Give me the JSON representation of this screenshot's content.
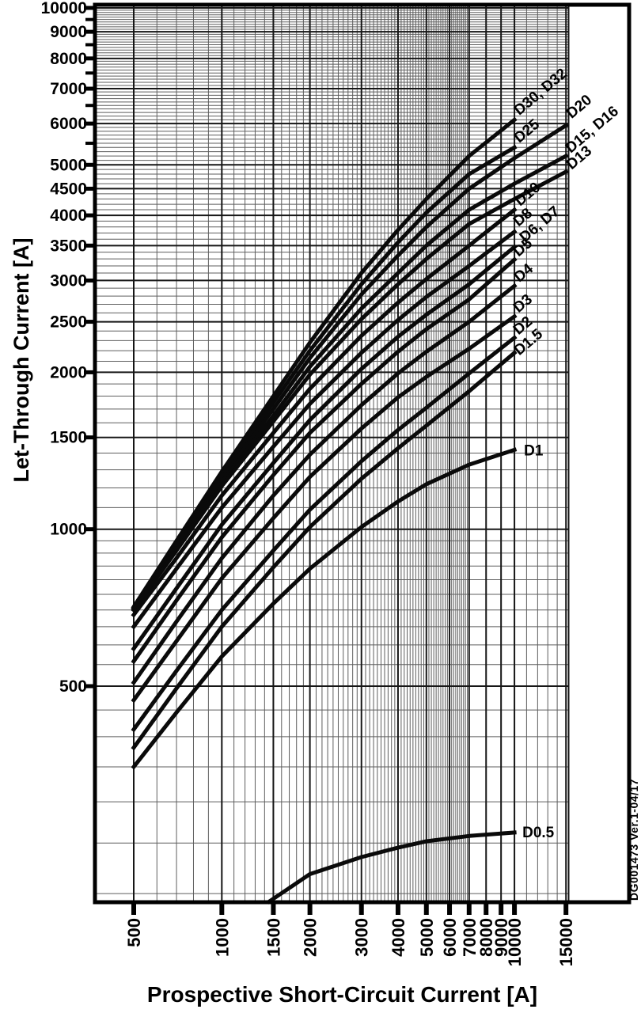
{
  "page": {
    "background": "#ffffff"
  },
  "chart_data": {
    "type": "line",
    "title": "",
    "xlabel": "Prospective Short-Circuit Current [A]",
    "ylabel": "Let-Through Current [A]",
    "side_note": "DG001473  Ver.1-04/17",
    "x_scale": "log",
    "y_scale": "log",
    "x_range": [
      500,
      15000
    ],
    "y_range": [
      200,
      10000
    ],
    "grid": "on",
    "legend_position": "curve-end-labels",
    "x_ticks": [
      {
        "value": 500,
        "label": "500"
      },
      {
        "value": 1000,
        "label": "1000"
      },
      {
        "value": 1500,
        "label": "1500"
      },
      {
        "value": 2000,
        "label": "2000"
      },
      {
        "value": 3000,
        "label": "3000"
      },
      {
        "value": 4000,
        "label": "4000"
      },
      {
        "value": 5000,
        "label": "5000"
      },
      {
        "value": 6000,
        "label": "6000"
      },
      {
        "value": 7000,
        "label": "7000"
      },
      {
        "value": 8000,
        "label": "8000"
      },
      {
        "value": 9000,
        "label": "9000"
      },
      {
        "value": 10000,
        "label": "10000"
      },
      {
        "value": 15000,
        "label": "15000"
      }
    ],
    "y_ticks": [
      {
        "value": 10000,
        "label": "10000"
      },
      {
        "value": 9000,
        "label": "9000"
      },
      {
        "value": 8000,
        "label": "8000"
      },
      {
        "value": 7000,
        "label": "7000"
      },
      {
        "value": 6000,
        "label": "6000"
      },
      {
        "value": 5000,
        "label": "5000"
      },
      {
        "value": 4500,
        "label": "4500"
      },
      {
        "value": 4000,
        "label": "4000"
      },
      {
        "value": 3500,
        "label": "3500"
      },
      {
        "value": 3000,
        "label": "3000"
      },
      {
        "value": 2500,
        "label": "2500"
      },
      {
        "value": 2000,
        "label": "2000"
      },
      {
        "value": 1500,
        "label": "1500"
      },
      {
        "value": 1000,
        "label": "1000"
      },
      {
        "value": 500,
        "label": "500"
      }
    ],
    "y_minor_tick_marks": [
      5500,
      6500,
      7500,
      8500,
      9500
    ],
    "x_minor_grid": [
      {
        "from": 500,
        "to": 6900,
        "step": 100
      },
      {
        "from": 8000,
        "to": 14000,
        "step": 1000
      }
    ],
    "y_minor_grid": [
      {
        "from": 200,
        "to": 950,
        "step": 50
      },
      {
        "from": 1000,
        "to": 9900,
        "step": 100
      }
    ],
    "colors": {
      "curve": "#0a0a0a",
      "grid_minor": "#5e5e5e",
      "grid_major": "#161616",
      "frame": "#000000",
      "background": "#ffffff"
    },
    "series": [
      {
        "name": "D30, D32",
        "points": [
          [
            500,
            710
          ],
          [
            700,
            950
          ],
          [
            1000,
            1290
          ],
          [
            1500,
            1800
          ],
          [
            2000,
            2280
          ],
          [
            3000,
            3100
          ],
          [
            4000,
            3750
          ],
          [
            5000,
            4300
          ],
          [
            7000,
            5200
          ],
          [
            10000,
            6100
          ]
        ],
        "label": {
          "dx": 6,
          "dy": -5,
          "rot": -40
        }
      },
      {
        "name": "D25",
        "points": [
          [
            500,
            708
          ],
          [
            700,
            940
          ],
          [
            1000,
            1270
          ],
          [
            1500,
            1750
          ],
          [
            2000,
            2200
          ],
          [
            3000,
            2950
          ],
          [
            4000,
            3550
          ],
          [
            5000,
            4050
          ],
          [
            7000,
            4800
          ],
          [
            10000,
            5400
          ]
        ],
        "label": {
          "dx": 6,
          "dy": -5,
          "rot": -40
        }
      },
      {
        "name": "D20",
        "points": [
          [
            500,
            706
          ],
          [
            700,
            930
          ],
          [
            1000,
            1250
          ],
          [
            1500,
            1700
          ],
          [
            2000,
            2130
          ],
          [
            3000,
            2820
          ],
          [
            4000,
            3350
          ],
          [
            5000,
            3800
          ],
          [
            7000,
            4500
          ],
          [
            10000,
            5150
          ],
          [
            15000,
            5950
          ]
        ],
        "label": {
          "dx": 7,
          "dy": -8,
          "rot": -40
        }
      },
      {
        "name": "D15, D16",
        "points": [
          [
            500,
            704
          ],
          [
            700,
            920
          ],
          [
            1000,
            1230
          ],
          [
            1500,
            1650
          ],
          [
            2000,
            2050
          ],
          [
            3000,
            2650
          ],
          [
            4000,
            3100
          ],
          [
            5000,
            3500
          ],
          [
            7000,
            4100
          ],
          [
            10000,
            4600
          ],
          [
            15000,
            5200
          ]
        ],
        "label": {
          "dx": 6,
          "dy": -3,
          "rot": -40
        }
      },
      {
        "name": "D13",
        "points": [
          [
            500,
            700
          ],
          [
            700,
            910
          ],
          [
            1000,
            1210
          ],
          [
            1500,
            1610
          ],
          [
            2000,
            1980
          ],
          [
            3000,
            2530
          ],
          [
            4000,
            2950
          ],
          [
            5000,
            3300
          ],
          [
            7000,
            3850
          ],
          [
            10000,
            4300
          ],
          [
            15000,
            4850
          ]
        ],
        "label": {
          "dx": 7,
          "dy": -2,
          "rot": -40
        }
      },
      {
        "name": "D10",
        "points": [
          [
            500,
            685
          ],
          [
            700,
            880
          ],
          [
            1000,
            1160
          ],
          [
            1500,
            1530
          ],
          [
            2000,
            1860
          ],
          [
            3000,
            2350
          ],
          [
            4000,
            2720
          ],
          [
            5000,
            3020
          ],
          [
            7000,
            3500
          ],
          [
            10000,
            4100
          ]
        ],
        "label": {
          "dx": 7,
          "dy": -4,
          "rot": -40
        }
      },
      {
        "name": "D8",
        "points": [
          [
            500,
            650
          ],
          [
            700,
            840
          ],
          [
            1000,
            1100
          ],
          [
            1500,
            1440
          ],
          [
            2000,
            1740
          ],
          [
            3000,
            2180
          ],
          [
            4000,
            2520
          ],
          [
            5000,
            2790
          ],
          [
            7000,
            3200
          ],
          [
            10000,
            3720
          ]
        ],
        "label": {
          "dx": 5,
          "dy": -6,
          "rot": -40
        }
      },
      {
        "name": "D6, D7",
        "points": [
          [
            500,
            590
          ],
          [
            700,
            770
          ],
          [
            1000,
            1020
          ],
          [
            1500,
            1340
          ],
          [
            2000,
            1620
          ],
          [
            3000,
            2030
          ],
          [
            4000,
            2340
          ],
          [
            5000,
            2580
          ],
          [
            7000,
            2950
          ],
          [
            10000,
            3480
          ]
        ],
        "label": {
          "dx": 13,
          "dy": -5,
          "rot": -40
        }
      },
      {
        "name": "D5",
        "points": [
          [
            500,
            558
          ],
          [
            700,
            730
          ],
          [
            1000,
            965
          ],
          [
            1500,
            1270
          ],
          [
            2000,
            1530
          ],
          [
            3000,
            1900
          ],
          [
            4000,
            2190
          ],
          [
            5000,
            2420
          ],
          [
            7000,
            2760
          ],
          [
            10000,
            3290
          ]
        ],
        "label": {
          "dx": 5,
          "dy": -3,
          "rot": -40
        }
      },
      {
        "name": "D4",
        "points": [
          [
            500,
            508
          ],
          [
            700,
            665
          ],
          [
            1000,
            880
          ],
          [
            1500,
            1160
          ],
          [
            2000,
            1390
          ],
          [
            3000,
            1730
          ],
          [
            4000,
            1990
          ],
          [
            5000,
            2190
          ],
          [
            7000,
            2500
          ],
          [
            10000,
            2930
          ]
        ],
        "label": {
          "dx": 6,
          "dy": -4,
          "rot": -40
        }
      },
      {
        "name": "D3",
        "points": [
          [
            500,
            470
          ],
          [
            700,
            610
          ],
          [
            1000,
            805
          ],
          [
            1500,
            1050
          ],
          [
            2000,
            1260
          ],
          [
            3000,
            1560
          ],
          [
            4000,
            1790
          ],
          [
            5000,
            1960
          ],
          [
            7000,
            2220
          ],
          [
            10000,
            2560
          ]
        ],
        "label": {
          "dx": 5,
          "dy": -4,
          "rot": -40
        }
      },
      {
        "name": "D2",
        "points": [
          [
            500,
            413
          ],
          [
            700,
            535
          ],
          [
            1000,
            700
          ],
          [
            1500,
            910
          ],
          [
            2000,
            1090
          ],
          [
            3000,
            1350
          ],
          [
            4000,
            1550
          ],
          [
            5000,
            1710
          ],
          [
            7000,
            1990
          ],
          [
            10000,
            2330
          ]
        ],
        "label": {
          "dx": 5,
          "dy": -3,
          "rot": -40
        }
      },
      {
        "name": "D1.5",
        "points": [
          [
            500,
            381
          ],
          [
            700,
            495
          ],
          [
            1000,
            650
          ],
          [
            1500,
            845
          ],
          [
            2000,
            1010
          ],
          [
            3000,
            1250
          ],
          [
            4000,
            1430
          ],
          [
            5000,
            1580
          ],
          [
            7000,
            1840
          ],
          [
            10000,
            2180
          ]
        ],
        "label": {
          "dx": 6,
          "dy": 4,
          "rot": -40
        }
      },
      {
        "name": "D1",
        "points": [
          [
            500,
            350
          ],
          [
            700,
            445
          ],
          [
            1000,
            570
          ],
          [
            1500,
            720
          ],
          [
            2000,
            840
          ],
          [
            3000,
            1010
          ],
          [
            4000,
            1130
          ],
          [
            5000,
            1220
          ],
          [
            7000,
            1330
          ],
          [
            10000,
            1420
          ]
        ],
        "label": {
          "dx": 12,
          "dy": 7,
          "rot": 0
        }
      },
      {
        "name": "D0.5",
        "points": [
          [
            1450,
            193
          ],
          [
            2000,
            218
          ],
          [
            3000,
            235
          ],
          [
            4000,
            245
          ],
          [
            5000,
            252
          ],
          [
            7000,
            258
          ],
          [
            10000,
            262
          ]
        ],
        "label": {
          "dx": 10,
          "dy": 6,
          "rot": 0
        }
      }
    ]
  }
}
